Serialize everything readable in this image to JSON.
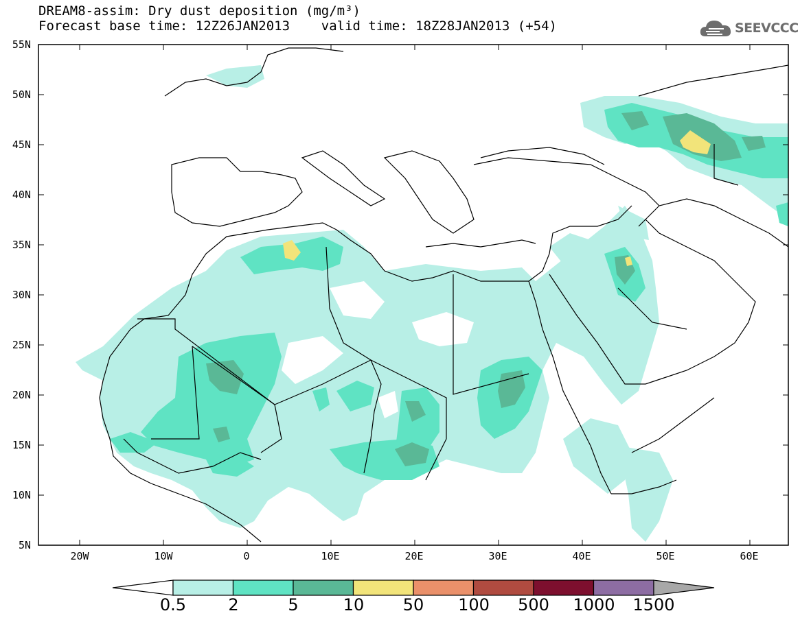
{
  "title": {
    "line1": "DREAM8-assim: Dry dust deposition (mg/m³)",
    "line2": "Forecast base time: 12Z26JAN2013    valid time: 18Z28JAN2013 (+54)"
  },
  "logo": {
    "text": "SEEVCCC",
    "icon": "cloud-icon"
  },
  "map": {
    "lat_labels": [
      "55N",
      "50N",
      "45N",
      "40N",
      "35N",
      "30N",
      "25N",
      "20N",
      "15N",
      "10N",
      "5N"
    ],
    "lon_labels": [
      "20W",
      "10W",
      "0",
      "10E",
      "20E",
      "30E",
      "40E",
      "50E",
      "60E"
    ]
  },
  "colorbar": {
    "labels": [
      "0.5",
      "2",
      "5",
      "10",
      "50",
      "100",
      "500",
      "1000",
      "1500"
    ],
    "colors": [
      "#ffffff",
      "#b8efe6",
      "#5fe3c3",
      "#5ab896",
      "#f2e47a",
      "#ea906a",
      "#b04b40",
      "#7d0f2e",
      "#8d6da3",
      "#a8a8a8"
    ]
  }
}
